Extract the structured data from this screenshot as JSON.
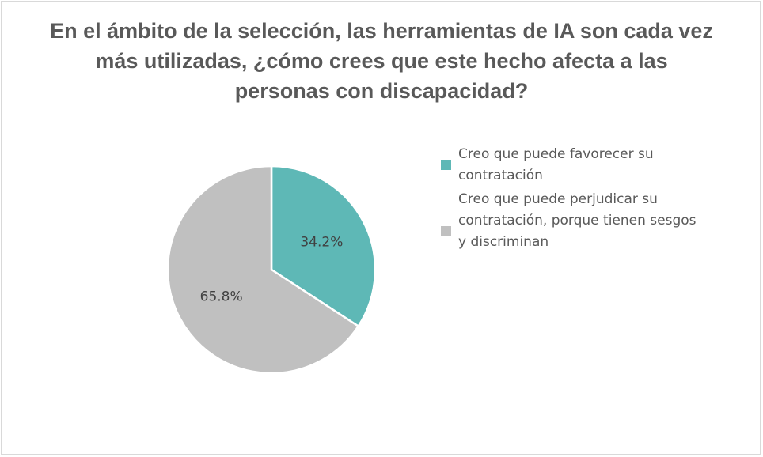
{
  "chart_data": {
    "type": "pie",
    "title": "En el ámbito de la selección, las herramientas de IA son cada vez más utilizadas, ¿cómo crees que este hecho afecta a las personas con discapacidad?",
    "categories": [
      "Creo que puede favorecer su contratación",
      "Creo que puede perjudicar su contratación, porque tienen sesgos y discriminan"
    ],
    "values": [
      34.2,
      65.8
    ],
    "data_labels": [
      "34.2%",
      "65.8%"
    ],
    "colors": [
      "#5eb8b6",
      "#c0c0c0"
    ],
    "legend_position": "right"
  }
}
